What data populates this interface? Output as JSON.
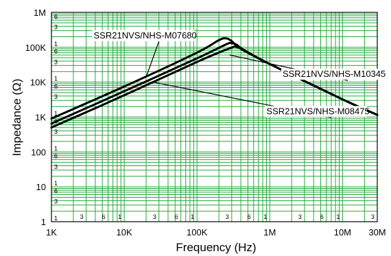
{
  "chart_data": {
    "type": "line",
    "xlabel": "Frequency (Hz)",
    "ylabel": "Impedance (Ω)",
    "x_scale": "log",
    "y_scale": "log",
    "xlim": [
      1000,
      30000000
    ],
    "ylim": [
      1,
      1000000
    ],
    "grid": true,
    "x_ticks": [
      {
        "value": 1000,
        "label": "1K"
      },
      {
        "value": 10000,
        "label": "10K"
      },
      {
        "value": 100000,
        "label": "100K"
      },
      {
        "value": 1000000,
        "label": "1M"
      },
      {
        "value": 10000000,
        "label": "10M"
      },
      {
        "value": 30000000,
        "label": "30M"
      }
    ],
    "x_minor_labels": [
      {
        "value": 3000,
        "label": "3"
      },
      {
        "value": 6000,
        "label": "6"
      },
      {
        "value": 10000,
        "label": "1"
      },
      {
        "value": 30000,
        "label": "3"
      },
      {
        "value": 60000,
        "label": "6"
      },
      {
        "value": 100000,
        "label": "1"
      },
      {
        "value": 300000,
        "label": "3"
      },
      {
        "value": 600000,
        "label": "6"
      },
      {
        "value": 1000000,
        "label": "1"
      },
      {
        "value": 3000000,
        "label": "3"
      },
      {
        "value": 6000000,
        "label": "6"
      },
      {
        "value": 10000000,
        "label": "1"
      },
      {
        "value": 30000000,
        "label": "3"
      }
    ],
    "y_ticks": [
      {
        "value": 1,
        "label": "1"
      },
      {
        "value": 10,
        "label": "10"
      },
      {
        "value": 100,
        "label": "100"
      },
      {
        "value": 1000,
        "label": "1K"
      },
      {
        "value": 10000,
        "label": "10K"
      },
      {
        "value": 100000,
        "label": "100K"
      },
      {
        "value": 1000000,
        "label": "1M"
      }
    ],
    "y_minor_labels": [
      {
        "value": 1,
        "label": "1"
      },
      {
        "value": 3,
        "label": "3"
      },
      {
        "value": 6,
        "label": "6"
      },
      {
        "value": 10,
        "label": "1"
      },
      {
        "value": 30,
        "label": "3"
      },
      {
        "value": 60,
        "label": "6"
      },
      {
        "value": 100,
        "label": "1"
      },
      {
        "value": 300,
        "label": "3"
      },
      {
        "value": 600,
        "label": "6"
      },
      {
        "value": 1000,
        "label": "1"
      },
      {
        "value": 3000,
        "label": "3"
      },
      {
        "value": 6000,
        "label": "6"
      },
      {
        "value": 10000,
        "label": "1"
      },
      {
        "value": 30000,
        "label": "3"
      },
      {
        "value": 60000,
        "label": "6"
      },
      {
        "value": 100000,
        "label": "1"
      },
      {
        "value": 300000,
        "label": "3"
      },
      {
        "value": 600000,
        "label": "6"
      }
    ],
    "series": [
      {
        "name": "SSR21NVS/NHS-M07680",
        "x": [
          1000,
          10000,
          100000,
          200000,
          250000,
          300000,
          400000,
          1000000,
          10000000,
          30000000
        ],
        "y": [
          900,
          7500,
          70000,
          160000,
          180000,
          150000,
          90000,
          33000,
          3200,
          1150
        ]
      },
      {
        "name": "SSR21NVS/NHS-M10345",
        "x": [
          1000,
          10000,
          100000,
          250000,
          300000,
          350000,
          450000,
          1000000,
          10000000,
          30000000
        ],
        "y": [
          650,
          5500,
          48000,
          120000,
          130000,
          118000,
          80000,
          33000,
          3200,
          1150
        ]
      },
      {
        "name": "SSR21NVS/NHS-M08475",
        "x": [
          1000,
          10000,
          100000,
          300000,
          350000,
          400000,
          500000,
          1000000,
          10000000,
          30000000
        ],
        "y": [
          500,
          4200,
          38000,
          98000,
          100000,
          95000,
          72000,
          33000,
          3200,
          1150
        ]
      }
    ],
    "annotations": [
      {
        "series": 0,
        "text": "SSR21NVS/NHS-M07680",
        "label_at": [
          3800,
          180000
        ],
        "point": [
          20000,
          14000
        ]
      },
      {
        "series": 1,
        "text": "SSR21NVS/NHS-M10345",
        "label_at": [
          1500000,
          14000
        ],
        "point": [
          280000,
          60000
        ]
      },
      {
        "series": 2,
        "text": "SSR21NVS/NHS-M08475",
        "label_at": [
          900000,
          1200
        ],
        "point": [
          25000,
          10000
        ]
      }
    ]
  }
}
